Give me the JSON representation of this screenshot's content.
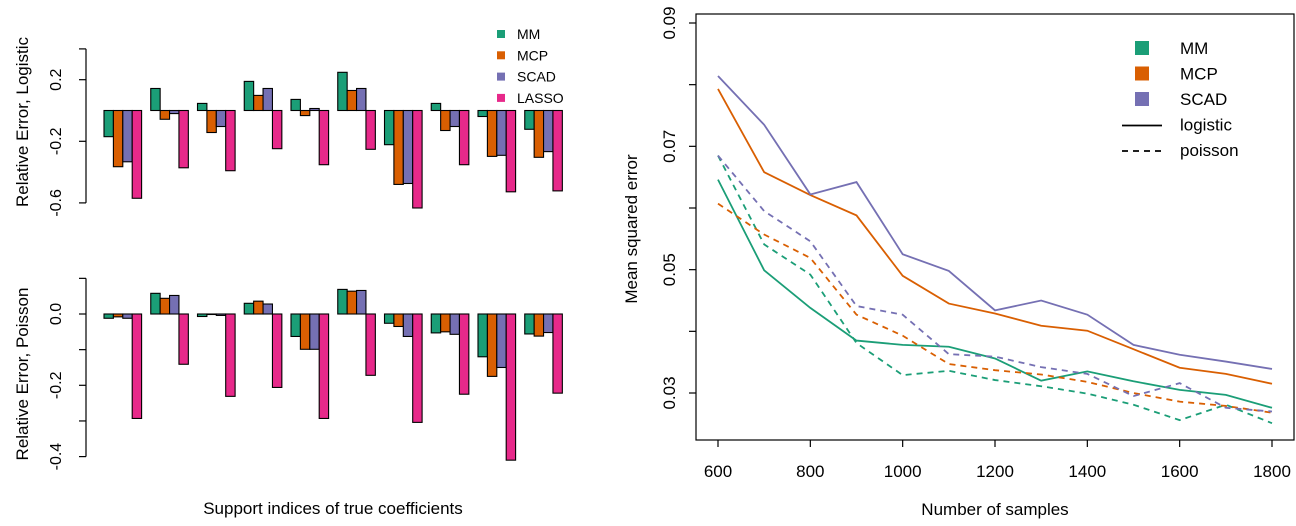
{
  "colors": {
    "MM": "#1b9e77",
    "MCP": "#d95f02",
    "SCAD": "#7570b3",
    "LASSO": "#e7298a"
  },
  "chart_data": [
    {
      "type": "bar",
      "ylabel": "Relative Error, Logistic",
      "xlabel": "",
      "ylim": [
        -0.6,
        0.4
      ],
      "yticks": [
        0.4,
        0.2,
        -0.2,
        -0.6
      ],
      "ytick_labels": [
        "",
        "0.2",
        "-0.2",
        "-0.6"
      ],
      "legend": {
        "entries": [
          "MM",
          "MCP",
          "SCAD",
          "LASSO"
        ],
        "position": "top-right"
      },
      "categories": [
        "1",
        "2",
        "3",
        "4",
        "5",
        "6",
        "7",
        "8",
        "9",
        "10"
      ],
      "series": [
        {
          "name": "MM",
          "values": [
            -0.17,
            0.143,
            0.046,
            0.189,
            0.072,
            0.248,
            -0.222,
            0.046,
            -0.039,
            -0.122
          ]
        },
        {
          "name": "MCP",
          "values": [
            -0.365,
            -0.057,
            -0.143,
            0.098,
            -0.033,
            0.13,
            -0.48,
            -0.13,
            -0.298,
            -0.304
          ]
        },
        {
          "name": "SCAD",
          "values": [
            -0.333,
            -0.02,
            -0.104,
            0.143,
            0.013,
            0.143,
            -0.474,
            -0.104,
            -0.291,
            -0.267
          ]
        },
        {
          "name": "LASSO",
          "values": [
            -0.57,
            -0.372,
            -0.391,
            -0.248,
            -0.352,
            -0.252,
            -0.633,
            -0.352,
            -0.528,
            -0.522
          ]
        }
      ]
    },
    {
      "type": "bar",
      "ylabel": "Relative Error, Poisson",
      "xlabel": "Support indices of true coefficients",
      "ylim": [
        -0.4,
        0.1
      ],
      "yticks": [
        0.1,
        0.0,
        -0.1,
        -0.2,
        -0.3,
        -0.4
      ],
      "ytick_labels": [
        "",
        "0.0",
        "",
        "-0.2",
        "",
        "-0.4"
      ],
      "categories": [
        "1",
        "2",
        "3",
        "4",
        "5",
        "6",
        "7",
        "8",
        "9",
        "10"
      ],
      "series": [
        {
          "name": "MM",
          "values": [
            -0.012,
            0.058,
            -0.007,
            0.03,
            -0.063,
            0.069,
            -0.026,
            -0.053,
            -0.12,
            -0.056
          ]
        },
        {
          "name": "MCP",
          "values": [
            -0.008,
            0.044,
            -0.001,
            0.036,
            -0.099,
            0.064,
            -0.035,
            -0.05,
            -0.175,
            -0.062
          ]
        },
        {
          "name": "SCAD",
          "values": [
            -0.012,
            0.052,
            -0.004,
            0.028,
            -0.099,
            0.066,
            -0.063,
            -0.057,
            -0.15,
            -0.052
          ]
        },
        {
          "name": "LASSO",
          "values": [
            -0.293,
            -0.141,
            -0.231,
            -0.206,
            -0.293,
            -0.172,
            -0.304,
            -0.225,
            -0.41,
            -0.222
          ]
        }
      ]
    },
    {
      "type": "line",
      "xlabel": "Number of samples",
      "ylabel": "Mean squared error",
      "xlim": [
        600,
        1800
      ],
      "ylim": [
        0.03,
        0.09
      ],
      "xticks": [
        600,
        800,
        1000,
        1200,
        1400,
        1600,
        1800
      ],
      "xtick_labels": [
        "600",
        "800",
        "1000",
        "1200",
        "1400",
        "1600",
        "1800"
      ],
      "yticks": [
        0.03,
        0.04,
        0.05,
        0.06,
        0.07,
        0.08,
        0.09
      ],
      "ytick_labels": [
        "0.03",
        "",
        "0.05",
        "",
        "0.07",
        "",
        "0.09"
      ],
      "legend": {
        "entries": [
          "MM",
          "MCP",
          "SCAD",
          "logistic",
          "poisson"
        ],
        "position": "top-right"
      },
      "x": [
        600,
        700,
        800,
        900,
        1000,
        1100,
        1200,
        1300,
        1400,
        1500,
        1600,
        1700,
        1800
      ],
      "series": [
        {
          "method": "MM",
          "model": "logistic",
          "style": "solid",
          "values": [
            0.0646,
            0.0499,
            0.0438,
            0.0385,
            0.0378,
            0.0375,
            0.0356,
            0.032,
            0.0335,
            0.0319,
            0.0305,
            0.0297,
            0.0276
          ]
        },
        {
          "method": "MCP",
          "model": "logistic",
          "style": "solid",
          "values": [
            0.0793,
            0.0658,
            0.0621,
            0.0588,
            0.049,
            0.0445,
            0.0429,
            0.0409,
            0.0401,
            0.0371,
            0.0341,
            0.0331,
            0.0315
          ]
        },
        {
          "method": "SCAD",
          "model": "logistic",
          "style": "solid",
          "values": [
            0.0814,
            0.0735,
            0.0622,
            0.0642,
            0.0525,
            0.0498,
            0.0434,
            0.045,
            0.0427,
            0.0378,
            0.0362,
            0.0351,
            0.0339
          ]
        },
        {
          "method": "MM",
          "model": "poisson",
          "style": "dashed",
          "values": [
            0.0685,
            0.0541,
            0.0492,
            0.0381,
            0.0329,
            0.0336,
            0.0321,
            0.0311,
            0.0299,
            0.0281,
            0.0256,
            0.0281,
            0.0251
          ]
        },
        {
          "method": "MCP",
          "model": "poisson",
          "style": "dashed",
          "values": [
            0.0607,
            0.0557,
            0.0519,
            0.0427,
            0.0393,
            0.0347,
            0.0337,
            0.033,
            0.0318,
            0.03,
            0.0286,
            0.0279,
            0.0268
          ]
        },
        {
          "method": "SCAD",
          "model": "poisson",
          "style": "dashed",
          "values": [
            0.0685,
            0.0595,
            0.0546,
            0.0441,
            0.0427,
            0.0363,
            0.0359,
            0.0342,
            0.0331,
            0.0295,
            0.0316,
            0.0276,
            0.027
          ]
        }
      ]
    }
  ]
}
